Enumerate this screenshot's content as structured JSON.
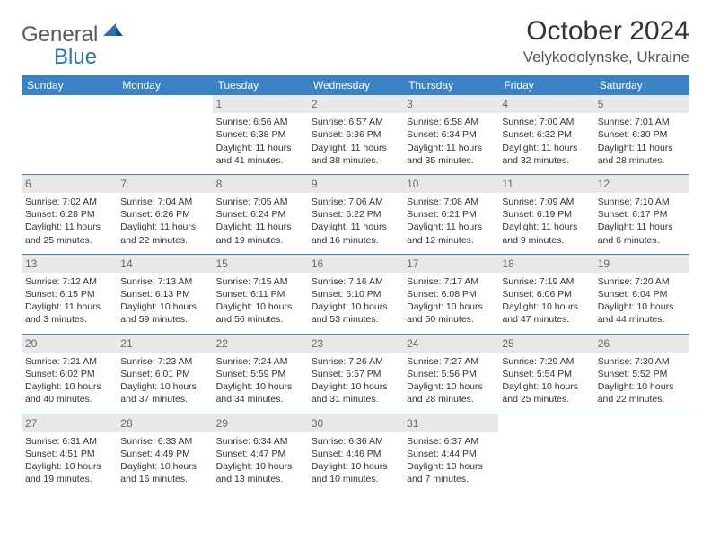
{
  "logo": {
    "text_general": "General",
    "text_blue": "Blue"
  },
  "title": "October 2024",
  "location": "Velykodolynske, Ukraine",
  "colors": {
    "header_bg": "#3a82c4",
    "header_fg": "#ffffff",
    "daynum_bg": "#e8e8e8",
    "daynum_fg": "#6a6a6a",
    "accent": "#2f6fb3",
    "rule": "#3a82c4"
  },
  "day_headers": [
    "Sunday",
    "Monday",
    "Tuesday",
    "Wednesday",
    "Thursday",
    "Friday",
    "Saturday"
  ],
  "weeks": [
    [
      {
        "n": "",
        "lines": [
          "",
          "",
          ""
        ]
      },
      {
        "n": "",
        "lines": [
          "",
          "",
          ""
        ]
      },
      {
        "n": "1",
        "lines": [
          "Sunrise: 6:56 AM",
          "Sunset: 6:38 PM",
          "Daylight: 11 hours and 41 minutes."
        ]
      },
      {
        "n": "2",
        "lines": [
          "Sunrise: 6:57 AM",
          "Sunset: 6:36 PM",
          "Daylight: 11 hours and 38 minutes."
        ]
      },
      {
        "n": "3",
        "lines": [
          "Sunrise: 6:58 AM",
          "Sunset: 6:34 PM",
          "Daylight: 11 hours and 35 minutes."
        ]
      },
      {
        "n": "4",
        "lines": [
          "Sunrise: 7:00 AM",
          "Sunset: 6:32 PM",
          "Daylight: 11 hours and 32 minutes."
        ]
      },
      {
        "n": "5",
        "lines": [
          "Sunrise: 7:01 AM",
          "Sunset: 6:30 PM",
          "Daylight: 11 hours and 28 minutes."
        ]
      }
    ],
    [
      {
        "n": "6",
        "lines": [
          "Sunrise: 7:02 AM",
          "Sunset: 6:28 PM",
          "Daylight: 11 hours and 25 minutes."
        ]
      },
      {
        "n": "7",
        "lines": [
          "Sunrise: 7:04 AM",
          "Sunset: 6:26 PM",
          "Daylight: 11 hours and 22 minutes."
        ]
      },
      {
        "n": "8",
        "lines": [
          "Sunrise: 7:05 AM",
          "Sunset: 6:24 PM",
          "Daylight: 11 hours and 19 minutes."
        ]
      },
      {
        "n": "9",
        "lines": [
          "Sunrise: 7:06 AM",
          "Sunset: 6:22 PM",
          "Daylight: 11 hours and 16 minutes."
        ]
      },
      {
        "n": "10",
        "lines": [
          "Sunrise: 7:08 AM",
          "Sunset: 6:21 PM",
          "Daylight: 11 hours and 12 minutes."
        ]
      },
      {
        "n": "11",
        "lines": [
          "Sunrise: 7:09 AM",
          "Sunset: 6:19 PM",
          "Daylight: 11 hours and 9 minutes."
        ]
      },
      {
        "n": "12",
        "lines": [
          "Sunrise: 7:10 AM",
          "Sunset: 6:17 PM",
          "Daylight: 11 hours and 6 minutes."
        ]
      }
    ],
    [
      {
        "n": "13",
        "lines": [
          "Sunrise: 7:12 AM",
          "Sunset: 6:15 PM",
          "Daylight: 11 hours and 3 minutes."
        ]
      },
      {
        "n": "14",
        "lines": [
          "Sunrise: 7:13 AM",
          "Sunset: 6:13 PM",
          "Daylight: 10 hours and 59 minutes."
        ]
      },
      {
        "n": "15",
        "lines": [
          "Sunrise: 7:15 AM",
          "Sunset: 6:11 PM",
          "Daylight: 10 hours and 56 minutes."
        ]
      },
      {
        "n": "16",
        "lines": [
          "Sunrise: 7:16 AM",
          "Sunset: 6:10 PM",
          "Daylight: 10 hours and 53 minutes."
        ]
      },
      {
        "n": "17",
        "lines": [
          "Sunrise: 7:17 AM",
          "Sunset: 6:08 PM",
          "Daylight: 10 hours and 50 minutes."
        ]
      },
      {
        "n": "18",
        "lines": [
          "Sunrise: 7:19 AM",
          "Sunset: 6:06 PM",
          "Daylight: 10 hours and 47 minutes."
        ]
      },
      {
        "n": "19",
        "lines": [
          "Sunrise: 7:20 AM",
          "Sunset: 6:04 PM",
          "Daylight: 10 hours and 44 minutes."
        ]
      }
    ],
    [
      {
        "n": "20",
        "lines": [
          "Sunrise: 7:21 AM",
          "Sunset: 6:02 PM",
          "Daylight: 10 hours and 40 minutes."
        ]
      },
      {
        "n": "21",
        "lines": [
          "Sunrise: 7:23 AM",
          "Sunset: 6:01 PM",
          "Daylight: 10 hours and 37 minutes."
        ]
      },
      {
        "n": "22",
        "lines": [
          "Sunrise: 7:24 AM",
          "Sunset: 5:59 PM",
          "Daylight: 10 hours and 34 minutes."
        ]
      },
      {
        "n": "23",
        "lines": [
          "Sunrise: 7:26 AM",
          "Sunset: 5:57 PM",
          "Daylight: 10 hours and 31 minutes."
        ]
      },
      {
        "n": "24",
        "lines": [
          "Sunrise: 7:27 AM",
          "Sunset: 5:56 PM",
          "Daylight: 10 hours and 28 minutes."
        ]
      },
      {
        "n": "25",
        "lines": [
          "Sunrise: 7:29 AM",
          "Sunset: 5:54 PM",
          "Daylight: 10 hours and 25 minutes."
        ]
      },
      {
        "n": "26",
        "lines": [
          "Sunrise: 7:30 AM",
          "Sunset: 5:52 PM",
          "Daylight: 10 hours and 22 minutes."
        ]
      }
    ],
    [
      {
        "n": "27",
        "lines": [
          "Sunrise: 6:31 AM",
          "Sunset: 4:51 PM",
          "Daylight: 10 hours and 19 minutes."
        ]
      },
      {
        "n": "28",
        "lines": [
          "Sunrise: 6:33 AM",
          "Sunset: 4:49 PM",
          "Daylight: 10 hours and 16 minutes."
        ]
      },
      {
        "n": "29",
        "lines": [
          "Sunrise: 6:34 AM",
          "Sunset: 4:47 PM",
          "Daylight: 10 hours and 13 minutes."
        ]
      },
      {
        "n": "30",
        "lines": [
          "Sunrise: 6:36 AM",
          "Sunset: 4:46 PM",
          "Daylight: 10 hours and 10 minutes."
        ]
      },
      {
        "n": "31",
        "lines": [
          "Sunrise: 6:37 AM",
          "Sunset: 4:44 PM",
          "Daylight: 10 hours and 7 minutes."
        ]
      },
      {
        "n": "",
        "lines": [
          "",
          "",
          ""
        ]
      },
      {
        "n": "",
        "lines": [
          "",
          "",
          ""
        ]
      }
    ]
  ]
}
